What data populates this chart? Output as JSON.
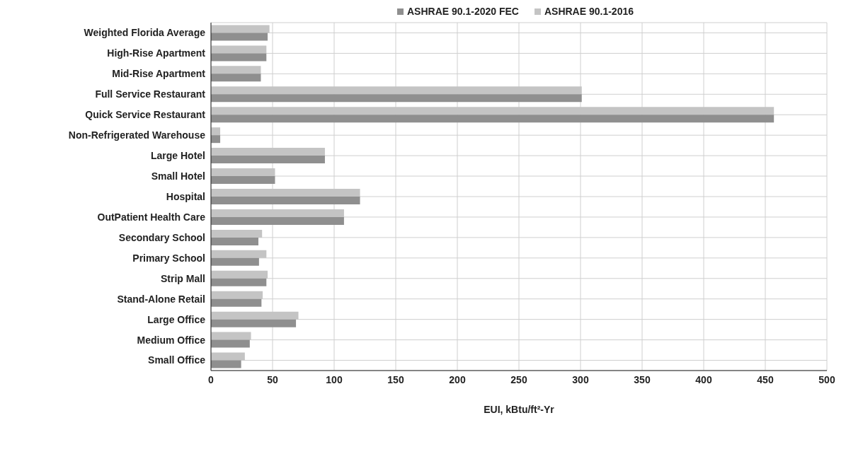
{
  "chart_data": {
    "type": "bar",
    "orientation": "horizontal",
    "xlabel": "EUI, kBtu/ft²-Yr",
    "categories": [
      "Weighted Florida Average",
      "High-Rise Apartment",
      "Mid-Rise Apartment",
      "Full Service Restaurant",
      "Quick Service Restaurant",
      "Non-Refrigerated Warehouse",
      "Large Hotel",
      "Small Hotel",
      "Hospital",
      "OutPatient Health Care",
      "Secondary School",
      "Primary School",
      "Strip Mall",
      "Stand-Alone Retail",
      "Large Office",
      "Medium Office",
      "Small Office"
    ],
    "series": [
      {
        "name": "ASHRAE 90.1-2020 FEC",
        "color": "#8f8f8f",
        "values": [
          46,
          45,
          40.5,
          301,
          457,
          7.5,
          92.5,
          52,
          121,
          108,
          38.5,
          39,
          45,
          41,
          69,
          31.5,
          24.5
        ]
      },
      {
        "name": "ASHRAE 90.1-2016",
        "color": "#c4c4c4",
        "values": [
          47.5,
          45,
          40.5,
          301,
          457,
          7.5,
          92.5,
          52,
          121,
          108,
          41.5,
          45,
          46,
          42,
          71,
          32.5,
          27.5
        ]
      }
    ],
    "xlim": [
      0,
      500
    ],
    "xticks": [
      0,
      50,
      100,
      150,
      200,
      250,
      300,
      350,
      400,
      450,
      500
    ],
    "grid": true,
    "legend": "top"
  }
}
